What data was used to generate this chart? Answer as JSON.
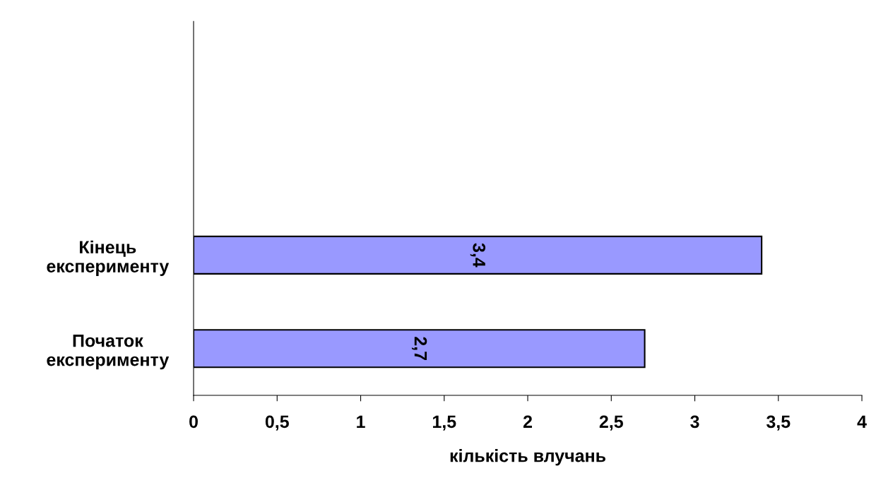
{
  "chart_data": {
    "type": "bar",
    "orientation": "horizontal",
    "categories": [
      null,
      null,
      "Кінець експерименту",
      "Початок експерименту"
    ],
    "values": [
      null,
      null,
      3.4,
      2.7
    ],
    "value_labels": [
      null,
      null,
      "3,4",
      "2,7"
    ],
    "color": "#9999ff",
    "xlabel": "кількість влучань",
    "xlim": [
      0,
      4
    ],
    "xticks": [
      0,
      {
        "value": 0.5,
        "label": "0,5"
      },
      1,
      {
        "value": 1.5,
        "label": "1,5"
      },
      2,
      {
        "value": 2.5,
        "label": "2,5"
      },
      3,
      {
        "value": 3.5,
        "label": "3,5"
      },
      4
    ],
    "grid": false,
    "legend": false
  }
}
